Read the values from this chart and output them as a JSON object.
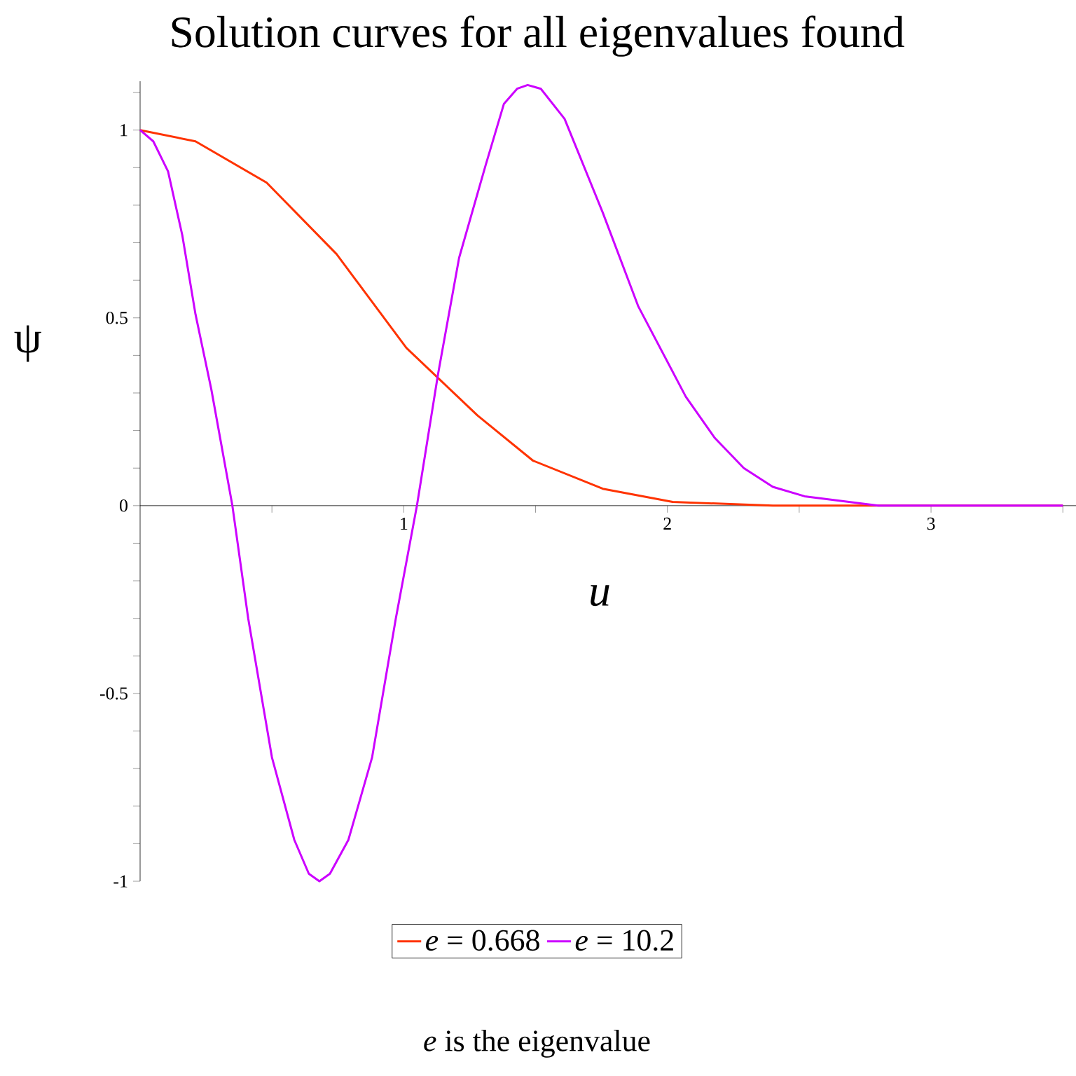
{
  "chart_data": {
    "type": "line",
    "title": "Solution curves for all eigenvalues found",
    "xlabel": "*u*",
    "ylabel": "ψ",
    "annotations": [
      "*e* is the eigenvalue"
    ],
    "xlim": [
      0,
      3.55
    ],
    "ylim": [
      -1,
      1.13
    ],
    "xticks": [
      {
        "value": 0.5,
        "label": null
      },
      1,
      {
        "value": 1.5,
        "label": null
      },
      2,
      {
        "value": 2.5,
        "label": null
      },
      3,
      {
        "value": 3.5,
        "label": null
      }
    ],
    "yticks": [
      -1,
      {
        "value": -0.9,
        "label": null
      },
      {
        "value": -0.8,
        "label": null
      },
      {
        "value": -0.7,
        "label": null
      },
      {
        "value": -0.6,
        "label": null
      },
      -0.5,
      {
        "value": -0.4,
        "label": null
      },
      {
        "value": -0.3,
        "label": null
      },
      {
        "value": -0.2,
        "label": null
      },
      {
        "value": -0.1,
        "label": null
      },
      0,
      {
        "value": 0.1,
        "label": null
      },
      {
        "value": 0.2,
        "label": null
      },
      {
        "value": 0.3,
        "label": null
      },
      {
        "value": 0.4,
        "label": null
      },
      0.5,
      {
        "value": 0.6,
        "label": null
      },
      {
        "value": 0.7,
        "label": null
      },
      {
        "value": 0.8,
        "label": null
      },
      {
        "value": 0.9,
        "label": null
      },
      1,
      {
        "value": 1.1,
        "label": null
      }
    ],
    "legend": "bottom",
    "grid": false,
    "marker": "none",
    "line_style": "solid",
    "series": [
      {
        "name": "*e* = 0.668",
        "color": "#ff3300",
        "x": [
          0,
          0.21,
          0.48,
          0.745,
          1.01,
          1.28,
          1.49,
          1.755,
          2.02,
          2.4,
          2.8,
          3.5
        ],
        "values": [
          1,
          0.97,
          0.86,
          0.67,
          0.42,
          0.24,
          0.12,
          0.045,
          0.01,
          0,
          0,
          0
        ]
      },
      {
        "name": "*e* = 10.2",
        "color": "#cc00ff",
        "x": [
          0,
          0.05,
          0.106,
          0.16,
          0.21,
          0.27,
          0.35,
          0.41,
          0.5,
          0.585,
          0.64,
          0.68,
          0.72,
          0.79,
          0.88,
          0.97,
          1.05,
          1.13,
          1.21,
          1.31,
          1.38,
          1.43,
          1.47,
          1.52,
          1.61,
          1.755,
          1.89,
          2.07,
          2.18,
          2.29,
          2.4,
          2.52,
          2.8,
          3.5
        ],
        "values": [
          1,
          0.97,
          0.89,
          0.72,
          0.51,
          0.31,
          0,
          -0.3,
          -0.67,
          -0.89,
          -0.98,
          -1,
          -0.98,
          -0.89,
          -0.67,
          -0.3,
          0,
          0.35,
          0.66,
          0.905,
          1.07,
          1.11,
          1.12,
          1.11,
          1.03,
          0.78,
          0.53,
          0.29,
          0.18,
          0.1,
          0.05,
          0.025,
          0,
          0
        ]
      }
    ]
  }
}
